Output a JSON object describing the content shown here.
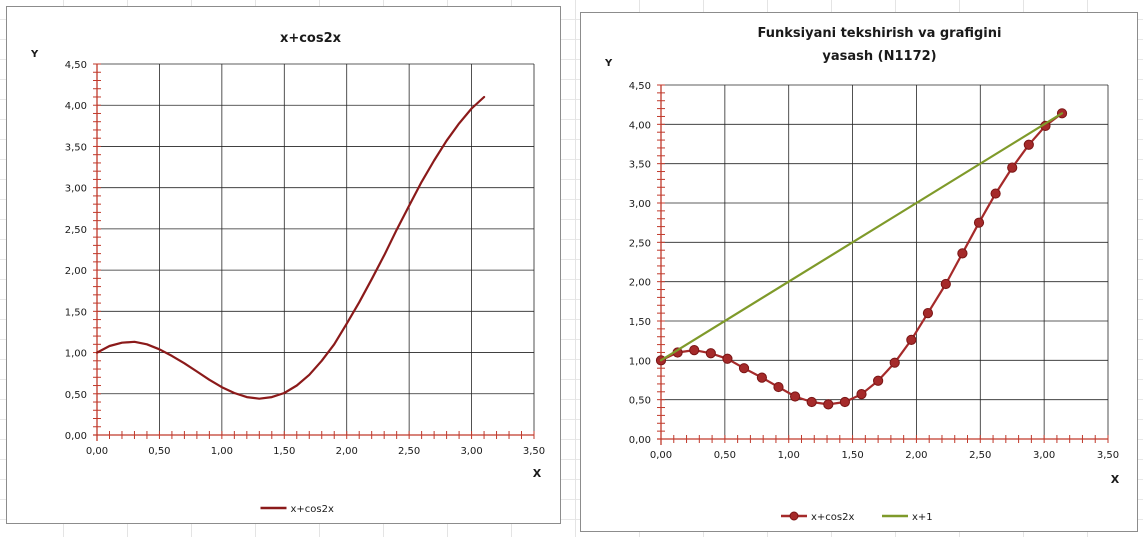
{
  "chart_data": [
    {
      "type": "line",
      "title": "x+cos2x",
      "xlabel": "X",
      "ylabel": "Y",
      "xlim": [
        0,
        3.5
      ],
      "ylim": [
        0,
        4.5
      ],
      "x_ticks": [
        "0,00",
        "0,50",
        "1,00",
        "1,50",
        "2,00",
        "2,50",
        "3,00",
        "3,50"
      ],
      "y_ticks": [
        "0,00",
        "0,50",
        "1,00",
        "1,50",
        "2,00",
        "2,50",
        "3,00",
        "3,50",
        "4,00",
        "4,50"
      ],
      "grid": "both",
      "legend_position": "bottom",
      "series": [
        {
          "name": "x+cos2x",
          "color": "#8b1a1a",
          "markers": false,
          "x": [
            0,
            0.1,
            0.2,
            0.3,
            0.4,
            0.5,
            0.6,
            0.7,
            0.8,
            0.9,
            1.0,
            1.1,
            1.2,
            1.3,
            1.4,
            1.5,
            1.6,
            1.7,
            1.8,
            1.9,
            2.0,
            2.1,
            2.2,
            2.3,
            2.4,
            2.5,
            2.6,
            2.7,
            2.8,
            2.9,
            3.0,
            3.1
          ],
          "y": [
            1.0,
            1.08,
            1.12,
            1.13,
            1.1,
            1.04,
            0.96,
            0.87,
            0.77,
            0.67,
            0.58,
            0.51,
            0.46,
            0.44,
            0.46,
            0.51,
            0.6,
            0.73,
            0.9,
            1.1,
            1.35,
            1.61,
            1.89,
            2.18,
            2.49,
            2.78,
            3.07,
            3.33,
            3.57,
            3.78,
            3.96,
            4.1
          ]
        }
      ]
    },
    {
      "type": "line",
      "title": "Funksiyani tekshirish va grafigini yasash (N1172)",
      "title_lines": [
        "Funksiyani tekshirish va grafigini",
        "yasash (N1172)"
      ],
      "xlabel": "X",
      "ylabel": "Y",
      "xlim": [
        0,
        3.5
      ],
      "ylim": [
        0,
        4.5
      ],
      "x_ticks": [
        "0,00",
        "0,50",
        "1,00",
        "1,50",
        "2,00",
        "2,50",
        "3,00",
        "3,50"
      ],
      "y_ticks": [
        "0,00",
        "0,50",
        "1,00",
        "1,50",
        "2,00",
        "2,50",
        "3,00",
        "3,50",
        "4,00",
        "4,50"
      ],
      "grid": "both",
      "legend_position": "bottom",
      "series": [
        {
          "name": "x+cos2x",
          "color": "#a52a2a",
          "markers": true,
          "x": [
            0,
            0.13,
            0.26,
            0.39,
            0.52,
            0.65,
            0.79,
            0.92,
            1.05,
            1.18,
            1.31,
            1.44,
            1.57,
            1.7,
            1.83,
            1.96,
            2.09,
            2.23,
            2.36,
            2.49,
            2.62,
            2.75,
            2.88,
            3.01,
            3.14
          ],
          "y": [
            1.0,
            1.1,
            1.13,
            1.09,
            1.02,
            0.9,
            0.78,
            0.66,
            0.54,
            0.47,
            0.44,
            0.47,
            0.57,
            0.74,
            0.97,
            1.26,
            1.6,
            1.97,
            2.36,
            2.75,
            3.12,
            3.45,
            3.74,
            3.98,
            4.14
          ]
        },
        {
          "name": "x+1",
          "color": "#7f9a2a",
          "markers": false,
          "x": [
            0,
            3.14
          ],
          "y": [
            1.0,
            4.14
          ]
        }
      ]
    }
  ]
}
